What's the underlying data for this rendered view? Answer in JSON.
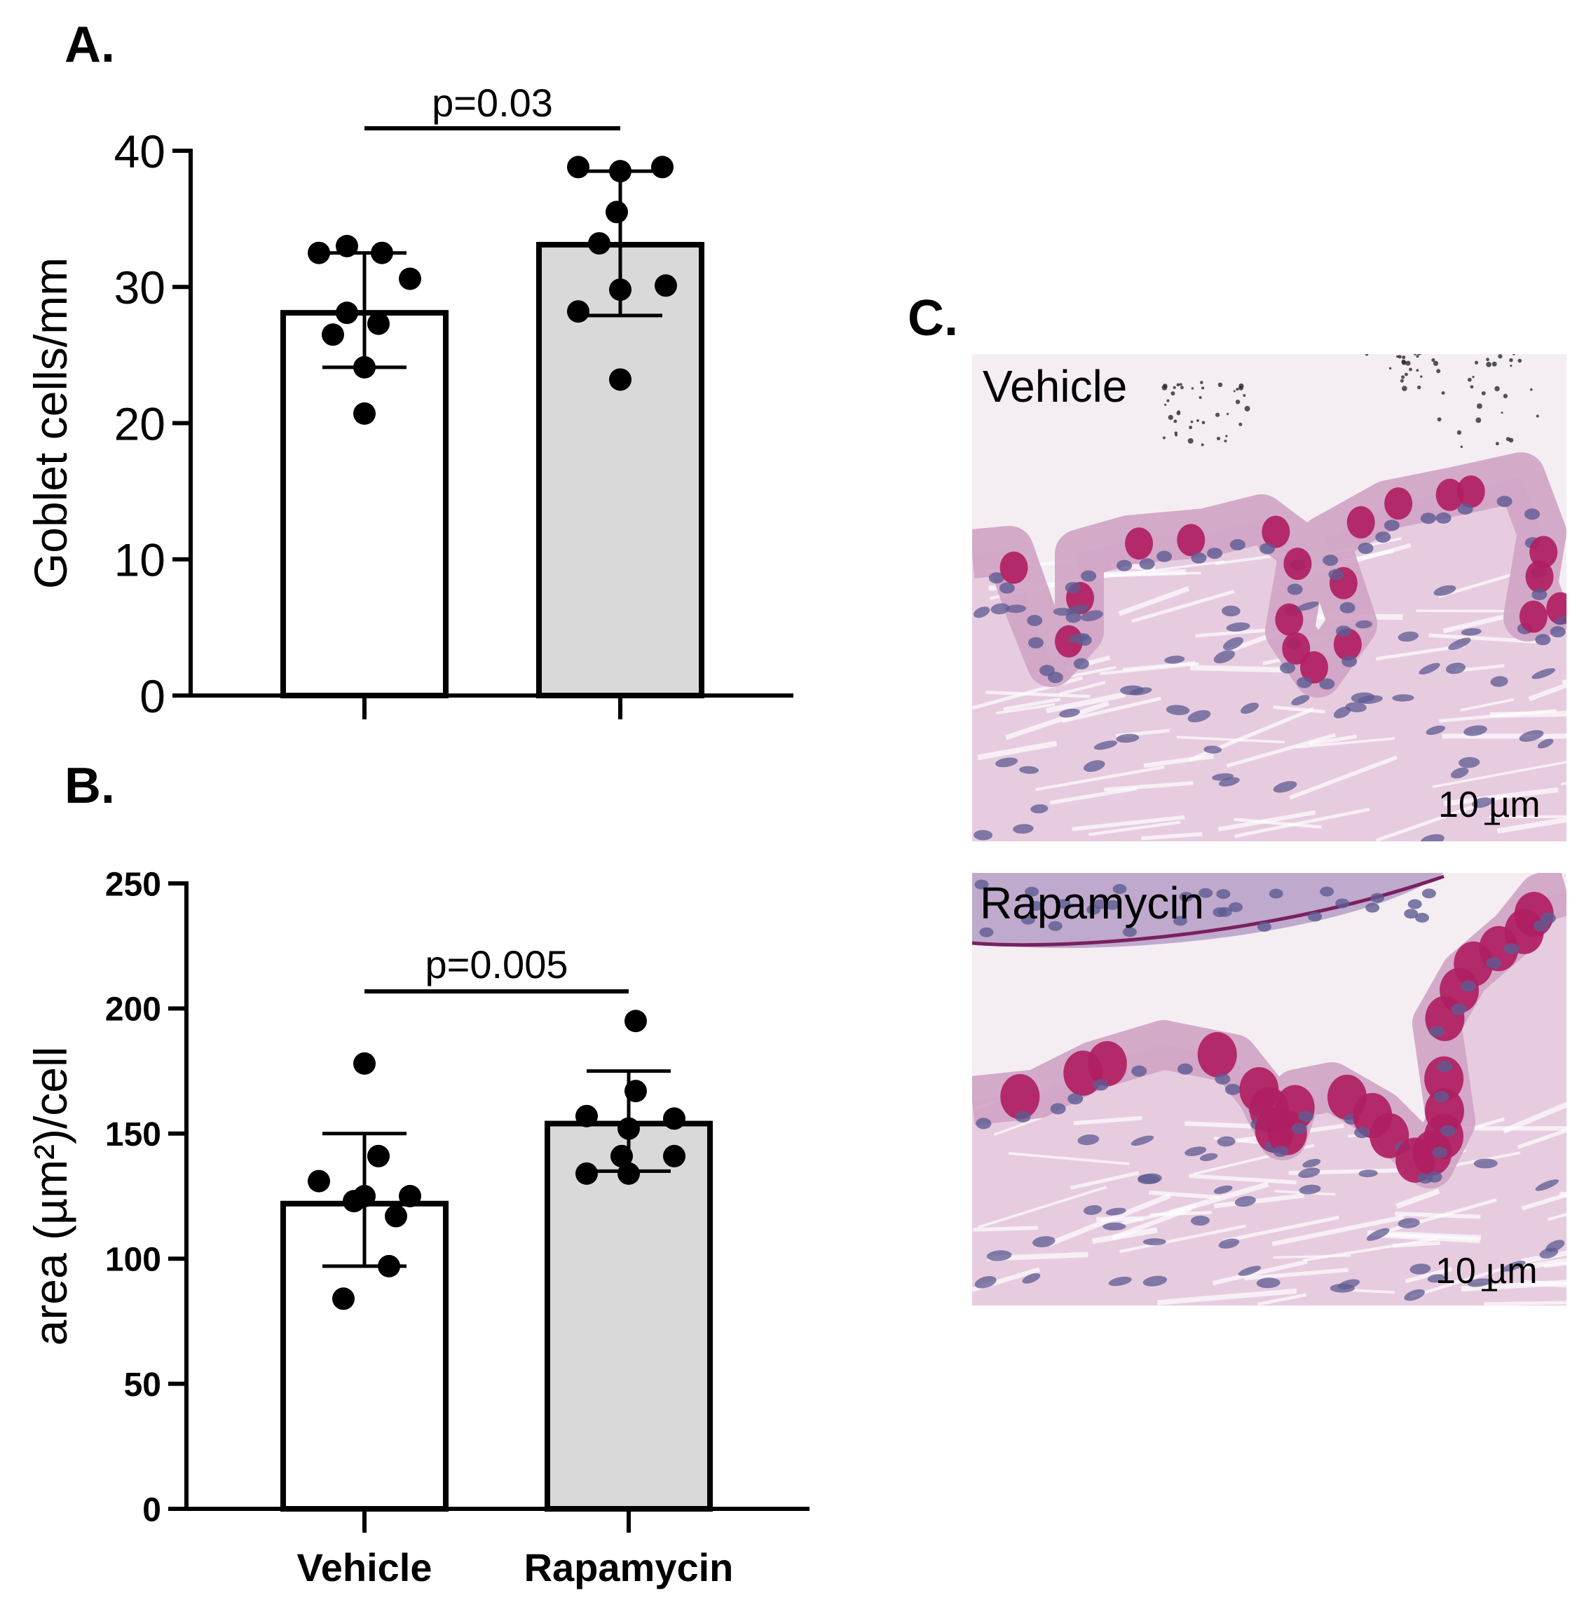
{
  "figure": {
    "panel_labels": {
      "a": "A.",
      "b": "B.",
      "c": "C."
    },
    "micrographs": [
      {
        "label": "Vehicle",
        "scale_bar": "10 µm"
      },
      {
        "label": "Rapamycin",
        "scale_bar": "10 µm"
      }
    ],
    "colors": {
      "vehicle_bar": "#ffffff",
      "rapamycin_bar": "#d9d9d9",
      "ink": "#000000",
      "tissue_background": "#f4eef3",
      "goblet_cell": "#b01e62",
      "nucleus": "#5e5b92",
      "stroma": "#e4c6dc"
    }
  },
  "chart_data": [
    {
      "panel": "A.",
      "type": "bar",
      "ylabel": "Goblet cells/mm",
      "ylim": [
        0,
        40
      ],
      "yticks": [
        0,
        10,
        20,
        30,
        40
      ],
      "categories": [
        "Vehicle",
        "Rapamycin"
      ],
      "category_labels_shown": false,
      "means": [
        28.1,
        33.1
      ],
      "error": [
        [
          24.1,
          32.5
        ],
        [
          27.9,
          38.5
        ]
      ],
      "points": [
        [
          33.0,
          32.5,
          32.5,
          30.6,
          28.1,
          27.3,
          26.5,
          24.1,
          20.7
        ],
        [
          38.8,
          38.8,
          38.5,
          35.5,
          33.2,
          30.1,
          29.8,
          28.2,
          23.2
        ]
      ],
      "significance": "p=0.03"
    },
    {
      "panel": "B.",
      "type": "bar",
      "ylabel": "area (µm²)/cell",
      "ylim": [
        0,
        250
      ],
      "yticks": [
        0,
        50,
        100,
        150,
        200,
        250
      ],
      "categories": [
        "Vehicle",
        "Rapamycin"
      ],
      "category_labels_shown": true,
      "means": [
        122,
        154
      ],
      "error": [
        [
          97,
          150
        ],
        [
          135,
          175
        ]
      ],
      "points": [
        [
          178,
          141,
          131,
          125,
          125,
          123,
          117,
          97,
          84
        ],
        [
          195,
          167,
          157,
          156,
          152,
          141,
          141,
          134,
          134
        ]
      ],
      "significance": "p=0.005"
    }
  ]
}
